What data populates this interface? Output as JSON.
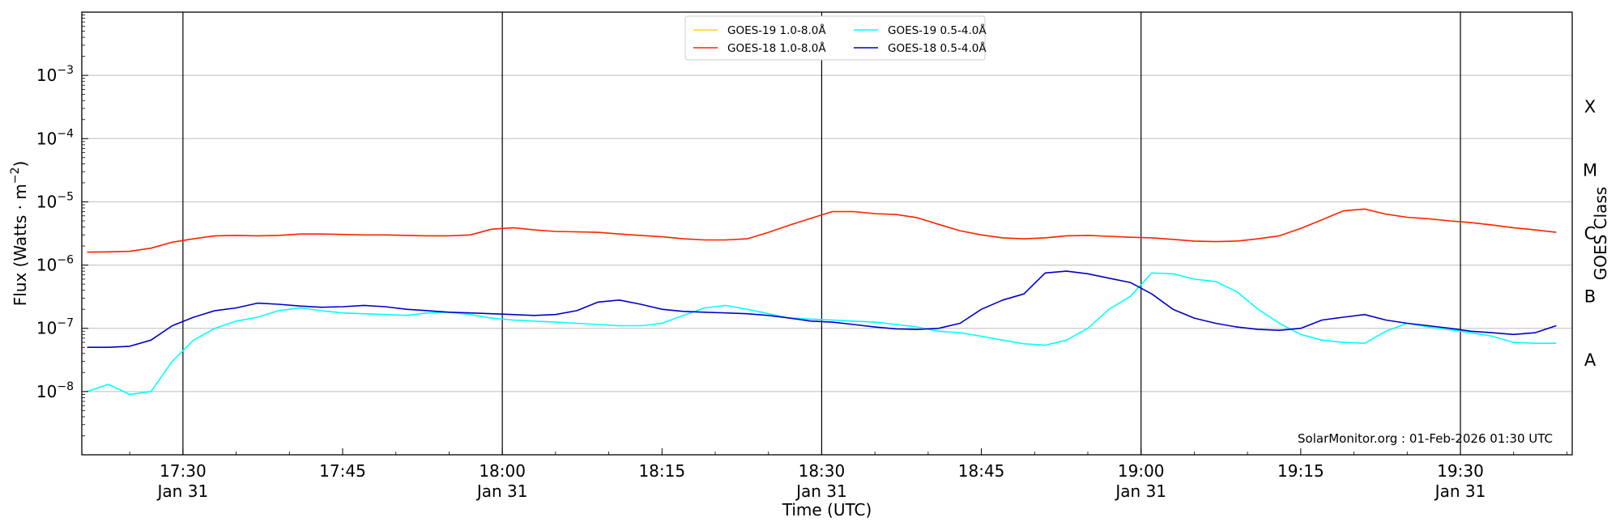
{
  "chart_data": {
    "type": "line",
    "xlabel": "Time (UTC)",
    "ylabel": "Flux (Watts · m",
    "ylabel_sup": "−2",
    "ylabel_close": ")",
    "right_axis_label": "GOES Class",
    "credit": "SolarMonitor.org : 01-Feb-2026 01:30 UTC",
    "y_scale": "log",
    "ylim": [
      1e-09,
      0.01
    ],
    "xlim_minutes": [
      1040.5,
      1180.5
    ],
    "grid": "horizontal at each decade",
    "legend_position": "top-center",
    "y_ticks": [
      {
        "value": 1e-08,
        "base": "10",
        "exp": "−8"
      },
      {
        "value": 1e-07,
        "base": "10",
        "exp": "−7"
      },
      {
        "value": 1e-06,
        "base": "10",
        "exp": "−6"
      },
      {
        "value": 1e-05,
        "base": "10",
        "exp": "−5"
      },
      {
        "value": 0.0001,
        "base": "10",
        "exp": "−4"
      },
      {
        "value": 0.001,
        "base": "10",
        "exp": "−3"
      }
    ],
    "x_ticks": [
      {
        "minutes": 1050,
        "time": "17:30",
        "date": "Jan 31",
        "vline": true
      },
      {
        "minutes": 1065,
        "time": "17:45",
        "date": "",
        "vline": false
      },
      {
        "minutes": 1080,
        "time": "18:00",
        "date": "Jan 31",
        "vline": true
      },
      {
        "minutes": 1095,
        "time": "18:15",
        "date": "",
        "vline": false
      },
      {
        "minutes": 1110,
        "time": "18:30",
        "date": "Jan 31",
        "vline": true
      },
      {
        "minutes": 1125,
        "time": "18:45",
        "date": "",
        "vline": false
      },
      {
        "minutes": 1140,
        "time": "19:00",
        "date": "Jan 31",
        "vline": true
      },
      {
        "minutes": 1155,
        "time": "19:15",
        "date": "",
        "vline": false
      },
      {
        "minutes": 1170,
        "time": "19:30",
        "date": "Jan 31",
        "vline": true
      }
    ],
    "goes_classes": [
      {
        "label": "A",
        "value": 3.16e-08
      },
      {
        "label": "B",
        "value": 3.16e-07
      },
      {
        "label": "C",
        "value": 3.16e-06
      },
      {
        "label": "M",
        "value": 3.16e-05
      },
      {
        "label": "X",
        "value": 0.000316
      }
    ],
    "legend_entries": [
      {
        "label": "GOES-19 1.0-8.0Å",
        "color": "#ffd700"
      },
      {
        "label": "GOES-19 0.5-4.0Å",
        "color": "#00ffff"
      },
      {
        "label": "GOES-18 1.0-8.0Å",
        "color": "#ff2200"
      },
      {
        "label": "GOES-18 0.5-4.0Å",
        "color": "#0000cc"
      }
    ],
    "x_minutes": [
      1041,
      1043,
      1045,
      1047,
      1049,
      1051,
      1053,
      1055,
      1057,
      1059,
      1061,
      1063,
      1065,
      1067,
      1069,
      1071,
      1073,
      1075,
      1077,
      1079,
      1081,
      1083,
      1085,
      1087,
      1089,
      1091,
      1093,
      1095,
      1097,
      1099,
      1101,
      1103,
      1105,
      1107,
      1109,
      1111,
      1113,
      1115,
      1117,
      1119,
      1121,
      1123,
      1125,
      1127,
      1129,
      1131,
      1133,
      1135,
      1137,
      1139,
      1141,
      1143,
      1145,
      1147,
      1149,
      1151,
      1153,
      1155,
      1157,
      1159,
      1161,
      1163,
      1165,
      1167,
      1169,
      1171,
      1173,
      1175,
      1177,
      1179
    ],
    "series": [
      {
        "name": "GOES-19 1.0-8.0Å",
        "color": "#ffd700",
        "width": 1.2,
        "values": [
          1.6e-06,
          1.62e-06,
          1.65e-06,
          1.85e-06,
          2.3e-06,
          2.6e-06,
          2.9e-06,
          2.95e-06,
          2.9e-06,
          2.95e-06,
          3.1e-06,
          3.1e-06,
          3.05e-06,
          3e-06,
          3e-06,
          2.95e-06,
          2.9e-06,
          2.9e-06,
          3e-06,
          3.7e-06,
          3.9e-06,
          3.6e-06,
          3.4e-06,
          3.35e-06,
          3.3e-06,
          3.1e-06,
          2.95e-06,
          2.8e-06,
          2.6e-06,
          2.5e-06,
          2.5e-06,
          2.6e-06,
          3.3e-06,
          4.3e-06,
          5.5e-06,
          7e-06,
          7e-06,
          6.5e-06,
          6.3e-06,
          5.6e-06,
          4.4e-06,
          3.5e-06,
          3e-06,
          2.7e-06,
          2.6e-06,
          2.7e-06,
          2.9e-06,
          2.95e-06,
          2.85e-06,
          2.75e-06,
          2.7e-06,
          2.55e-06,
          2.4e-06,
          2.35e-06,
          2.4e-06,
          2.6e-06,
          2.9e-06,
          3.8e-06,
          5.2e-06,
          7.2e-06,
          7.7e-06,
          6.4e-06,
          5.7e-06,
          5.4e-06,
          5e-06,
          4.7e-06,
          4.3e-06,
          3.9e-06,
          3.6e-06,
          3.3e-06
        ]
      },
      {
        "name": "GOES-18 1.0-8.0Å",
        "color": "#ff2200",
        "width": 1.6,
        "values": [
          1.6e-06,
          1.62e-06,
          1.65e-06,
          1.85e-06,
          2.3e-06,
          2.6e-06,
          2.9e-06,
          2.95e-06,
          2.9e-06,
          2.95e-06,
          3.1e-06,
          3.1e-06,
          3.05e-06,
          3e-06,
          3e-06,
          2.95e-06,
          2.9e-06,
          2.9e-06,
          3e-06,
          3.7e-06,
          3.9e-06,
          3.6e-06,
          3.4e-06,
          3.35e-06,
          3.3e-06,
          3.1e-06,
          2.95e-06,
          2.8e-06,
          2.6e-06,
          2.5e-06,
          2.5e-06,
          2.6e-06,
          3.3e-06,
          4.3e-06,
          5.5e-06,
          7e-06,
          7e-06,
          6.5e-06,
          6.3e-06,
          5.6e-06,
          4.4e-06,
          3.5e-06,
          3e-06,
          2.7e-06,
          2.6e-06,
          2.7e-06,
          2.9e-06,
          2.95e-06,
          2.85e-06,
          2.75e-06,
          2.7e-06,
          2.55e-06,
          2.4e-06,
          2.35e-06,
          2.4e-06,
          2.6e-06,
          2.9e-06,
          3.8e-06,
          5.2e-06,
          7.2e-06,
          7.7e-06,
          6.4e-06,
          5.7e-06,
          5.4e-06,
          5e-06,
          4.7e-06,
          4.3e-06,
          3.9e-06,
          3.6e-06,
          3.3e-06
        ]
      },
      {
        "name": "GOES-19 0.5-4.0Å",
        "color": "#00ffff",
        "width": 1.6,
        "values": [
          1e-08,
          1.3e-08,
          9e-09,
          1e-08,
          3e-08,
          6.5e-08,
          1e-07,
          1.3e-07,
          1.5e-07,
          1.9e-07,
          2.1e-07,
          1.9e-07,
          1.75e-07,
          1.7e-07,
          1.65e-07,
          1.6e-07,
          1.75e-07,
          1.8e-07,
          1.65e-07,
          1.45e-07,
          1.35e-07,
          1.3e-07,
          1.25e-07,
          1.2e-07,
          1.15e-07,
          1.1e-07,
          1.1e-07,
          1.2e-07,
          1.6e-07,
          2.1e-07,
          2.3e-07,
          2e-07,
          1.7e-07,
          1.45e-07,
          1.4e-07,
          1.35e-07,
          1.3e-07,
          1.25e-07,
          1.15e-07,
          1.05e-07,
          9e-08,
          8.5e-08,
          7.5e-08,
          6.5e-08,
          5.7e-08,
          5.4e-08,
          6.5e-08,
          1e-07,
          2e-07,
          3.2e-07,
          7.5e-07,
          7.3e-07,
          6e-07,
          5.5e-07,
          3.8e-07,
          2e-07,
          1.2e-07,
          8e-08,
          6.5e-08,
          6e-08,
          5.8e-08,
          9e-08,
          1.2e-07,
          1.05e-07,
          9.5e-08,
          8.5e-08,
          7.5e-08,
          6e-08,
          5.8e-08,
          5.8e-08
        ]
      },
      {
        "name": "GOES-18 0.5-4.0Å",
        "color": "#0000cc",
        "width": 1.6,
        "values": [
          5e-08,
          5e-08,
          5.2e-08,
          6.5e-08,
          1.1e-07,
          1.5e-07,
          1.9e-07,
          2.1e-07,
          2.5e-07,
          2.4e-07,
          2.25e-07,
          2.15e-07,
          2.2e-07,
          2.3e-07,
          2.2e-07,
          2e-07,
          1.9e-07,
          1.8e-07,
          1.75e-07,
          1.7e-07,
          1.65e-07,
          1.6e-07,
          1.65e-07,
          1.9e-07,
          2.6e-07,
          2.8e-07,
          2.4e-07,
          2e-07,
          1.85e-07,
          1.8e-07,
          1.75e-07,
          1.7e-07,
          1.6e-07,
          1.45e-07,
          1.3e-07,
          1.25e-07,
          1.15e-07,
          1.05e-07,
          9.8e-08,
          9.6e-08,
          1e-07,
          1.2e-07,
          2e-07,
          2.8e-07,
          3.5e-07,
          7.5e-07,
          8e-07,
          7.3e-07,
          6.2e-07,
          5.3e-07,
          3.5e-07,
          2e-07,
          1.45e-07,
          1.2e-07,
          1.05e-07,
          9.6e-08,
          9.3e-08,
          1e-07,
          1.35e-07,
          1.5e-07,
          1.65e-07,
          1.35e-07,
          1.2e-07,
          1.1e-07,
          1e-07,
          9e-08,
          8.5e-08,
          8e-08,
          8.5e-08,
          1.1e-07
        ]
      }
    ]
  }
}
